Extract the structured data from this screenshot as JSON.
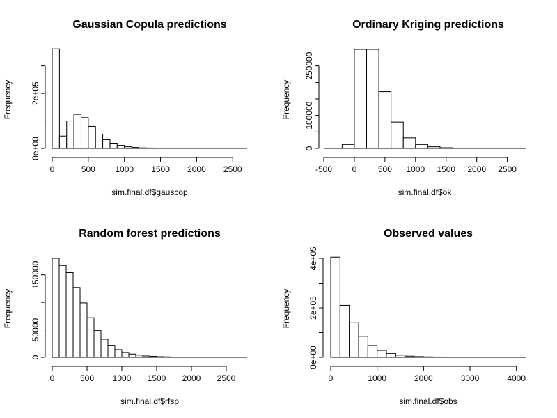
{
  "chart_data": [
    {
      "type": "bar",
      "title": "Gaussian Copula predictions",
      "xlabel": "sim.final.df$gauscop",
      "ylabel": "Frequency",
      "xlim": [
        0,
        2700
      ],
      "ylim": [
        0,
        360000
      ],
      "bins": [
        {
          "x0": 0,
          "x1": 100,
          "count": 362000
        },
        {
          "x0": 100,
          "x1": 200,
          "count": 45000
        },
        {
          "x0": 200,
          "x1": 300,
          "count": 100000
        },
        {
          "x0": 300,
          "x1": 400,
          "count": 124000
        },
        {
          "x0": 400,
          "x1": 500,
          "count": 112000
        },
        {
          "x0": 500,
          "x1": 600,
          "count": 80000
        },
        {
          "x0": 600,
          "x1": 700,
          "count": 52000
        },
        {
          "x0": 700,
          "x1": 800,
          "count": 32000
        },
        {
          "x0": 800,
          "x1": 900,
          "count": 19000
        },
        {
          "x0": 900,
          "x1": 1000,
          "count": 11000
        },
        {
          "x0": 1000,
          "x1": 1100,
          "count": 6000
        },
        {
          "x0": 1100,
          "x1": 1200,
          "count": 3500
        },
        {
          "x0": 1200,
          "x1": 1300,
          "count": 2000
        },
        {
          "x0": 1300,
          "x1": 1400,
          "count": 1500
        },
        {
          "x0": 1400,
          "x1": 1500,
          "count": 1000
        },
        {
          "x0": 1500,
          "x1": 1600,
          "count": 800
        },
        {
          "x0": 1600,
          "x1": 2700,
          "count": 0
        }
      ],
      "xticks": [
        {
          "v": 0,
          "label": "0"
        },
        {
          "v": 500,
          "label": "500"
        },
        {
          "v": 1000,
          "label": "1000"
        },
        {
          "v": 1500,
          "label": "1500"
        },
        {
          "v": 2000,
          "label": "2000"
        },
        {
          "v": 2500,
          "label": "2500"
        }
      ],
      "yticks": [
        {
          "v": 0,
          "label": "0e+00"
        },
        {
          "v": 100000,
          "label": ""
        },
        {
          "v": 200000,
          "label": "2e+05"
        },
        {
          "v": 300000,
          "label": ""
        }
      ]
    },
    {
      "type": "bar",
      "title": "Ordinary Kriging predictions",
      "xlabel": "sim.final.df$ok",
      "ylabel": "Frequency",
      "xlim": [
        -500,
        2800
      ],
      "ylim": [
        0,
        300000
      ],
      "bins": [
        {
          "x0": -400,
          "x1": -200,
          "count": 0
        },
        {
          "x0": -200,
          "x1": 0,
          "count": 12000
        },
        {
          "x0": 0,
          "x1": 200,
          "count": 300000
        },
        {
          "x0": 200,
          "x1": 400,
          "count": 300000
        },
        {
          "x0": 400,
          "x1": 600,
          "count": 172000
        },
        {
          "x0": 600,
          "x1": 800,
          "count": 80000
        },
        {
          "x0": 800,
          "x1": 1000,
          "count": 32000
        },
        {
          "x0": 1000,
          "x1": 1200,
          "count": 12000
        },
        {
          "x0": 1200,
          "x1": 1400,
          "count": 5000
        },
        {
          "x0": 1400,
          "x1": 1600,
          "count": 2000
        },
        {
          "x0": 1600,
          "x1": 1800,
          "count": 1000
        },
        {
          "x0": 1800,
          "x1": 2000,
          "count": 500
        },
        {
          "x0": 2000,
          "x1": 2800,
          "count": 0
        }
      ],
      "xticks": [
        {
          "v": -500,
          "label": "-500"
        },
        {
          "v": 0,
          "label": "0"
        },
        {
          "v": 500,
          "label": "500"
        },
        {
          "v": 1000,
          "label": "1000"
        },
        {
          "v": 1500,
          "label": "1500"
        },
        {
          "v": 2000,
          "label": "2000"
        },
        {
          "v": 2500,
          "label": "2500"
        }
      ],
      "yticks": [
        {
          "v": 0,
          "label": "0"
        },
        {
          "v": 50000,
          "label": ""
        },
        {
          "v": 100000,
          "label": "100000"
        },
        {
          "v": 150000,
          "label": ""
        },
        {
          "v": 200000,
          "label": ""
        },
        {
          "v": 250000,
          "label": "250000"
        }
      ]
    },
    {
      "type": "bar",
      "title": "Random forest predictions",
      "xlabel": "sim.final.df$rfsp",
      "ylabel": "Frequency",
      "xlim": [
        0,
        2800
      ],
      "ylim": [
        0,
        180000
      ],
      "bins": [
        {
          "x0": 0,
          "x1": 100,
          "count": 180000
        },
        {
          "x0": 100,
          "x1": 200,
          "count": 167000
        },
        {
          "x0": 200,
          "x1": 300,
          "count": 154000
        },
        {
          "x0": 300,
          "x1": 400,
          "count": 127000
        },
        {
          "x0": 400,
          "x1": 500,
          "count": 99000
        },
        {
          "x0": 500,
          "x1": 600,
          "count": 72000
        },
        {
          "x0": 600,
          "x1": 700,
          "count": 49000
        },
        {
          "x0": 700,
          "x1": 800,
          "count": 33000
        },
        {
          "x0": 800,
          "x1": 900,
          "count": 22000
        },
        {
          "x0": 900,
          "x1": 1000,
          "count": 14000
        },
        {
          "x0": 1000,
          "x1": 1100,
          "count": 9000
        },
        {
          "x0": 1100,
          "x1": 1200,
          "count": 6000
        },
        {
          "x0": 1200,
          "x1": 1300,
          "count": 4000
        },
        {
          "x0": 1300,
          "x1": 1400,
          "count": 2500
        },
        {
          "x0": 1400,
          "x1": 1500,
          "count": 1800
        },
        {
          "x0": 1500,
          "x1": 1600,
          "count": 1200
        },
        {
          "x0": 1600,
          "x1": 1700,
          "count": 900
        },
        {
          "x0": 1700,
          "x1": 1800,
          "count": 600
        },
        {
          "x0": 1800,
          "x1": 1900,
          "count": 400
        },
        {
          "x0": 1900,
          "x1": 2800,
          "count": 0
        }
      ],
      "xticks": [
        {
          "v": 0,
          "label": "0"
        },
        {
          "v": 500,
          "label": "500"
        },
        {
          "v": 1000,
          "label": "1000"
        },
        {
          "v": 1500,
          "label": "1500"
        },
        {
          "v": 2000,
          "label": "2000"
        },
        {
          "v": 2500,
          "label": "2500"
        }
      ],
      "yticks": [
        {
          "v": 0,
          "label": "0"
        },
        {
          "v": 50000,
          "label": "50000"
        },
        {
          "v": 100000,
          "label": ""
        },
        {
          "v": 150000,
          "label": "150000"
        }
      ]
    },
    {
      "type": "bar",
      "title": "Observed values",
      "xlabel": "sim.final.df$obs",
      "ylabel": "Frequency",
      "xlim": [
        0,
        4200
      ],
      "ylim": [
        0,
        400000
      ],
      "bins": [
        {
          "x0": 0,
          "x1": 200,
          "count": 405000
        },
        {
          "x0": 200,
          "x1": 400,
          "count": 210000
        },
        {
          "x0": 400,
          "x1": 600,
          "count": 140000
        },
        {
          "x0": 600,
          "x1": 800,
          "count": 85000
        },
        {
          "x0": 800,
          "x1": 1000,
          "count": 48000
        },
        {
          "x0": 1000,
          "x1": 1200,
          "count": 28000
        },
        {
          "x0": 1200,
          "x1": 1400,
          "count": 16000
        },
        {
          "x0": 1400,
          "x1": 1600,
          "count": 9000
        },
        {
          "x0": 1600,
          "x1": 1800,
          "count": 5000
        },
        {
          "x0": 1800,
          "x1": 2000,
          "count": 3000
        },
        {
          "x0": 2000,
          "x1": 2200,
          "count": 2000
        },
        {
          "x0": 2200,
          "x1": 2400,
          "count": 1500
        },
        {
          "x0": 2400,
          "x1": 2600,
          "count": 1000
        },
        {
          "x0": 2600,
          "x1": 4200,
          "count": 0
        }
      ],
      "xticks": [
        {
          "v": 0,
          "label": "0"
        },
        {
          "v": 1000,
          "label": "1000"
        },
        {
          "v": 2000,
          "label": "2000"
        },
        {
          "v": 3000,
          "label": "3000"
        },
        {
          "v": 4000,
          "label": "4000"
        }
      ],
      "yticks": [
        {
          "v": 0,
          "label": "0e+00"
        },
        {
          "v": 100000,
          "label": ""
        },
        {
          "v": 200000,
          "label": "2e+05"
        },
        {
          "v": 300000,
          "label": ""
        },
        {
          "v": 400000,
          "label": "4e+05"
        }
      ]
    }
  ]
}
